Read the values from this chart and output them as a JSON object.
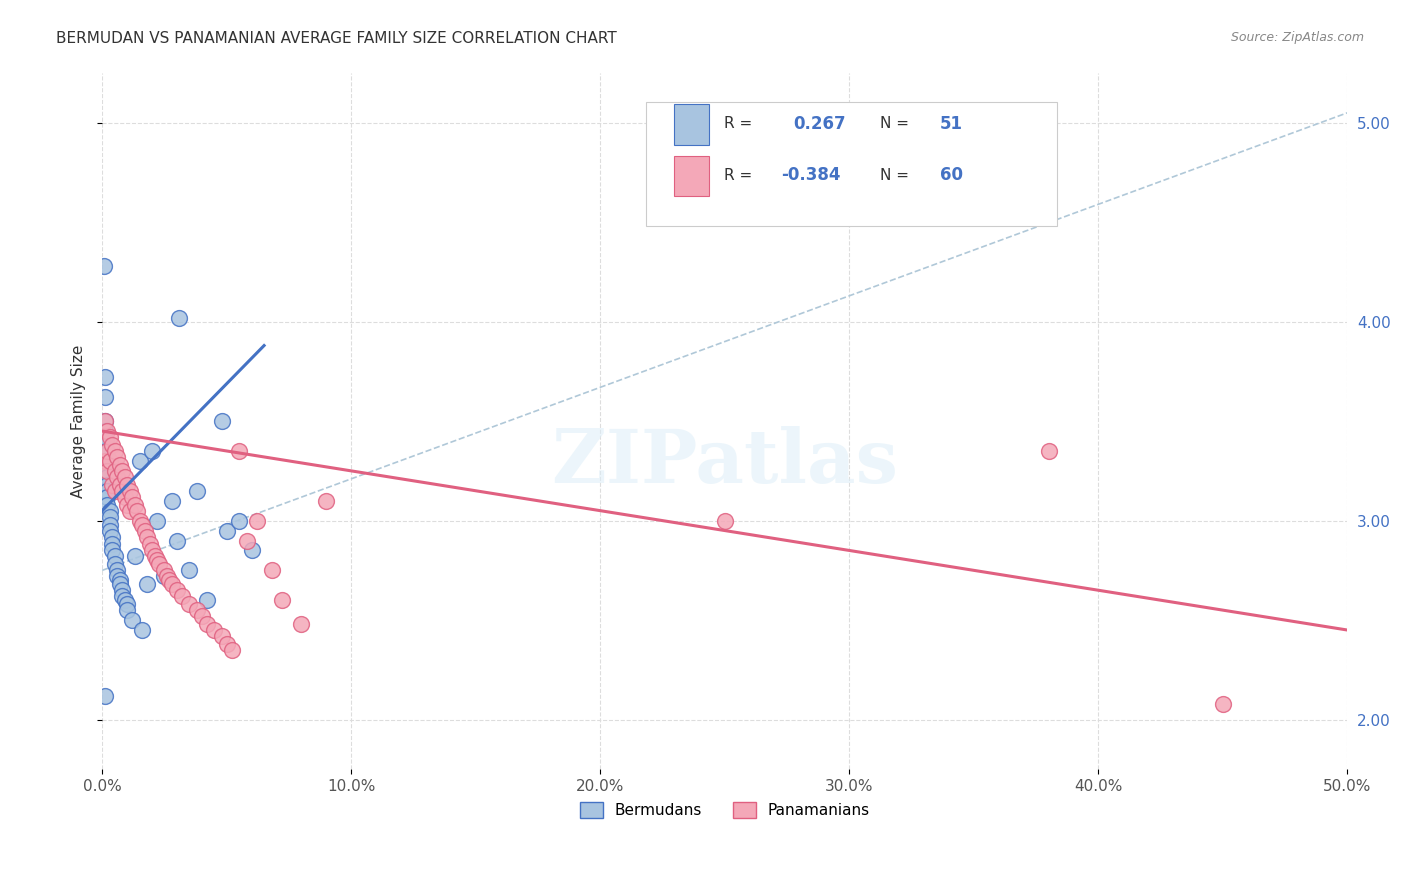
{
  "title": "BERMUDAN VS PANAMANIAN AVERAGE FAMILY SIZE CORRELATION CHART",
  "source": "Source: ZipAtlas.com",
  "ylabel": "Average Family Size",
  "xlim": [
    0.0,
    0.5
  ],
  "ylim": [
    1.75,
    5.25
  ],
  "yticks": [
    2.0,
    3.0,
    4.0,
    5.0
  ],
  "xticks": [
    0.0,
    0.1,
    0.2,
    0.3,
    0.4,
    0.5
  ],
  "xticklabels": [
    "0.0%",
    "10.0%",
    "20.0%",
    "30.0%",
    "40.0%",
    "50.0%"
  ],
  "yticklabels_right": [
    "2.00",
    "3.00",
    "4.00",
    "5.00"
  ],
  "bermudans_x": [
    0.0008,
    0.001,
    0.001,
    0.0012,
    0.0012,
    0.0015,
    0.0015,
    0.0015,
    0.002,
    0.002,
    0.002,
    0.002,
    0.002,
    0.002,
    0.003,
    0.003,
    0.003,
    0.003,
    0.004,
    0.004,
    0.004,
    0.005,
    0.005,
    0.006,
    0.006,
    0.007,
    0.007,
    0.008,
    0.008,
    0.009,
    0.01,
    0.01,
    0.012,
    0.013,
    0.015,
    0.016,
    0.018,
    0.02,
    0.022,
    0.025,
    0.028,
    0.03,
    0.031,
    0.035,
    0.038,
    0.042,
    0.048,
    0.05,
    0.055,
    0.06,
    0.001
  ],
  "bermudans_y": [
    4.28,
    3.72,
    3.62,
    3.5,
    3.45,
    3.4,
    3.35,
    3.3,
    3.25,
    3.22,
    3.18,
    3.15,
    3.12,
    3.08,
    3.05,
    3.02,
    2.98,
    2.95,
    2.92,
    2.88,
    2.85,
    2.82,
    2.78,
    2.75,
    2.72,
    2.7,
    2.68,
    2.65,
    2.62,
    2.6,
    2.58,
    2.55,
    2.5,
    2.82,
    3.3,
    2.45,
    2.68,
    3.35,
    3.0,
    2.72,
    3.1,
    2.9,
    4.02,
    2.75,
    3.15,
    2.6,
    3.5,
    2.95,
    3.0,
    2.85,
    2.12
  ],
  "panamanians_x": [
    0.001,
    0.001,
    0.002,
    0.002,
    0.002,
    0.003,
    0.003,
    0.004,
    0.004,
    0.005,
    0.005,
    0.005,
    0.006,
    0.006,
    0.007,
    0.007,
    0.008,
    0.008,
    0.009,
    0.009,
    0.01,
    0.01,
    0.011,
    0.011,
    0.012,
    0.013,
    0.014,
    0.015,
    0.016,
    0.017,
    0.018,
    0.019,
    0.02,
    0.021,
    0.022,
    0.023,
    0.025,
    0.026,
    0.027,
    0.028,
    0.03,
    0.032,
    0.035,
    0.038,
    0.04,
    0.042,
    0.045,
    0.048,
    0.05,
    0.052,
    0.055,
    0.058,
    0.062,
    0.068,
    0.072,
    0.08,
    0.09,
    0.25,
    0.38,
    0.45
  ],
  "panamanians_y": [
    3.5,
    3.3,
    3.45,
    3.35,
    3.25,
    3.42,
    3.3,
    3.38,
    3.18,
    3.35,
    3.25,
    3.15,
    3.32,
    3.22,
    3.28,
    3.18,
    3.25,
    3.15,
    3.22,
    3.12,
    3.18,
    3.08,
    3.15,
    3.05,
    3.12,
    3.08,
    3.05,
    3.0,
    2.98,
    2.95,
    2.92,
    2.88,
    2.85,
    2.82,
    2.8,
    2.78,
    2.75,
    2.72,
    2.7,
    2.68,
    2.65,
    2.62,
    2.58,
    2.55,
    2.52,
    2.48,
    2.45,
    2.42,
    2.38,
    2.35,
    3.35,
    2.9,
    3.0,
    2.75,
    2.6,
    2.48,
    3.1,
    3.0,
    3.35,
    2.08
  ],
  "bermudan_color": "#a8c4e0",
  "panamanian_color": "#f4a8b8",
  "bermudan_line_color": "#4472c4",
  "panamanian_line_color": "#e06080",
  "ref_line_color": "#b0c8d8",
  "legend_R_val_blue": "0.267",
  "legend_N_val_blue": "51",
  "legend_R_val_pink": "-0.384",
  "legend_N_val_pink": "60",
  "watermark": "ZIPatlas",
  "background_color": "#ffffff",
  "grid_color": "#dddddd",
  "berm_line_x0": 0.0,
  "berm_line_x1": 0.065,
  "berm_line_y0": 3.05,
  "berm_line_y1": 3.88,
  "pan_line_x0": 0.0,
  "pan_line_x1": 0.5,
  "pan_line_y0": 3.45,
  "pan_line_y1": 2.45,
  "ref_line_x0": 0.0,
  "ref_line_x1": 0.5,
  "ref_line_y0": 2.75,
  "ref_line_y1": 5.05
}
